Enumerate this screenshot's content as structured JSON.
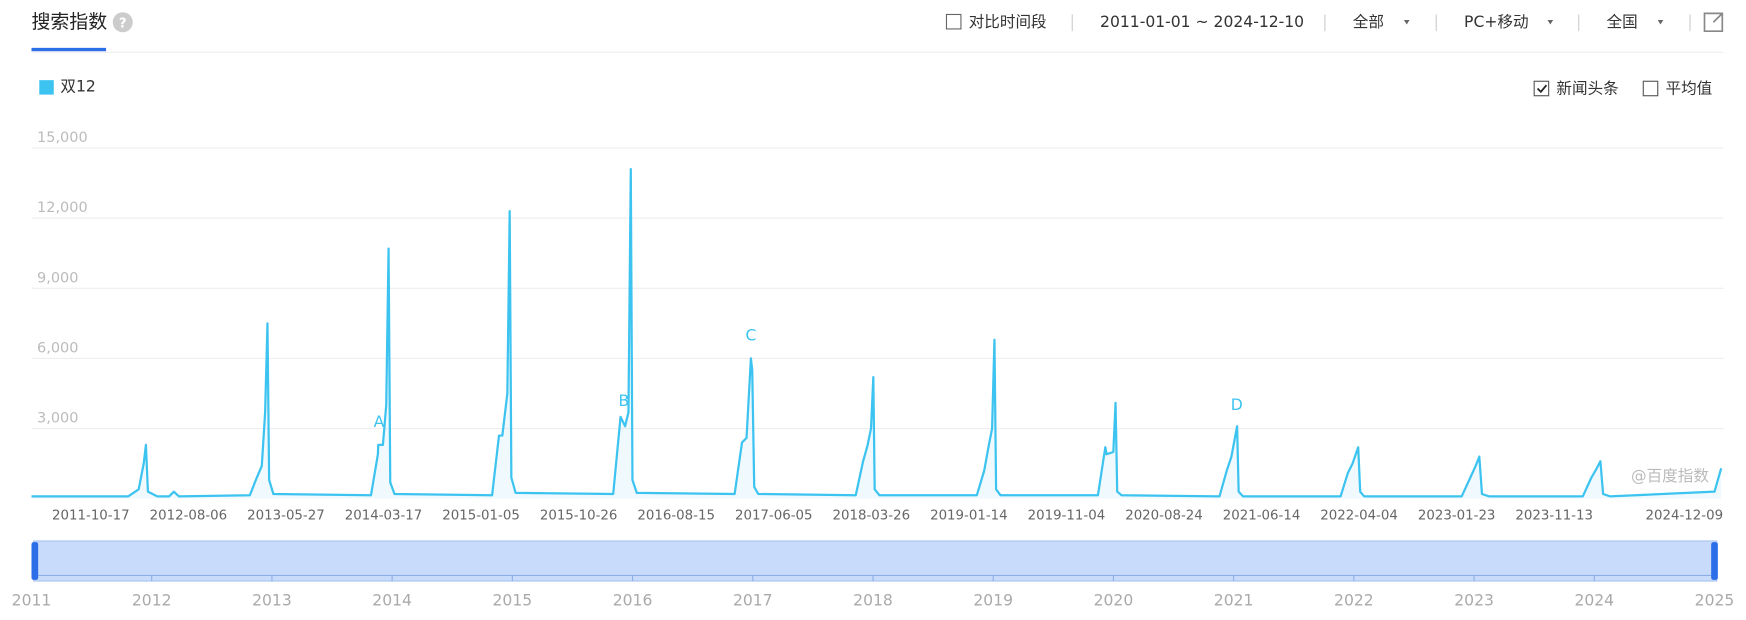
{
  "header": {
    "title": "搜索指数",
    "help": "?",
    "compare": "对比时间段",
    "date_range": "2011-01-01 ~ 2024-12-10",
    "filters": [
      "全部",
      "PC+移动",
      "全国"
    ]
  },
  "options": [
    {
      "label": "新闻头条",
      "checked": true
    },
    {
      "label": "平均值",
      "checked": false
    }
  ],
  "watermark": "@百度指数",
  "chart_data": {
    "type": "line",
    "xlim": [
      "2011-01-01",
      "2024-12-10"
    ],
    "ylim": [
      0,
      15000
    ],
    "yticks": [
      {
        "value": 3000,
        "label": "3,000"
      },
      {
        "value": 6000,
        "label": "6,000"
      },
      {
        "value": 9000,
        "label": "9,000"
      },
      {
        "value": 12000,
        "label": "12,000"
      },
      {
        "value": 15000,
        "label": "15,000"
      }
    ],
    "xticks": [
      "2011-10-17",
      "2012-08-06",
      "2013-05-27",
      "2014-03-17",
      "2015-01-05",
      "2015-10-26",
      "2016-08-15",
      "2017-06-05",
      "2018-03-26",
      "2019-01-14",
      "2019-11-04",
      "2020-08-24",
      "2021-06-14",
      "2022-04-04",
      "2023-01-23",
      "2023-11-13",
      "2024-12-09"
    ],
    "grid": true,
    "legend": "top-left",
    "x": [
      "2011-01-01",
      "2011-10-20",
      "2011-11-20",
      "2011-12-05",
      "2011-12-12",
      "2011-12-18",
      "2012-01-15",
      "2012-02-20",
      "2012-03-05",
      "2012-03-20",
      "2012-10-20",
      "2012-11-10",
      "2012-11-25",
      "2012-12-05",
      "2012-12-12",
      "2012-12-17",
      "2012-12-30",
      "2013-10-20",
      "2013-11-10",
      "2013-11-11",
      "2013-11-25",
      "2013-12-05",
      "2013-12-12",
      "2013-12-17",
      "2013-12-30",
      "2014-10-20",
      "2014-11-10",
      "2014-11-20",
      "2014-12-05",
      "2014-12-12",
      "2014-12-17",
      "2014-12-30",
      "2015-10-20",
      "2015-11-11",
      "2015-11-25",
      "2015-12-05",
      "2015-12-12",
      "2015-12-17",
      "2015-12-30",
      "2016-10-20",
      "2016-11-11",
      "2016-11-25",
      "2016-12-08",
      "2016-12-12",
      "2016-12-18",
      "2016-12-30",
      "2017-10-20",
      "2017-11-11",
      "2017-11-25",
      "2017-12-05",
      "2017-12-12",
      "2017-12-16",
      "2017-12-30",
      "2018-10-20",
      "2018-11-11",
      "2018-11-25",
      "2018-12-05",
      "2018-12-12",
      "2018-12-17",
      "2018-12-30",
      "2019-10-20",
      "2019-11-11",
      "2019-11-15",
      "2019-12-05",
      "2019-12-12",
      "2019-12-17",
      "2019-12-30",
      "2020-10-20",
      "2020-11-11",
      "2020-11-25",
      "2020-12-12",
      "2020-12-17",
      "2020-12-30",
      "2021-10-20",
      "2021-11-11",
      "2021-11-25",
      "2021-12-12",
      "2021-12-18",
      "2021-12-30",
      "2022-10-20",
      "2022-11-15",
      "2022-12-01",
      "2022-12-12",
      "2022-12-20",
      "2023-01-10",
      "2023-10-20",
      "2023-11-15",
      "2023-12-01",
      "2023-12-12",
      "2023-12-20",
      "2024-01-10",
      "2024-11-20",
      "2024-12-10"
    ],
    "series": [
      {
        "name": "双12",
        "color": "#3cc3f0",
        "values": [
          100,
          100,
          400,
          1500,
          2300,
          300,
          100,
          100,
          300,
          100,
          150,
          900,
          1400,
          3700,
          7500,
          800,
          200,
          150,
          1900,
          2300,
          2300,
          4000,
          10700,
          700,
          200,
          150,
          2700,
          2700,
          4500,
          12300,
          900,
          250,
          200,
          3500,
          3100,
          3700,
          14100,
          800,
          250,
          200,
          2400,
          2600,
          6000,
          5500,
          500,
          200,
          150,
          1600,
          2300,
          3000,
          5200,
          400,
          150,
          150,
          1200,
          2300,
          3000,
          6800,
          400,
          150,
          150,
          2200,
          1900,
          2000,
          4100,
          300,
          150,
          100,
          1200,
          1800,
          3100,
          300,
          100,
          100,
          1100,
          1500,
          2200,
          300,
          100,
          100,
          900,
          1400,
          1800,
          200,
          100,
          100,
          900,
          1300,
          1600,
          200,
          100,
          300,
          1300
        ]
      }
    ],
    "annotations": [
      {
        "label": "A",
        "x": "2013-11-13"
      },
      {
        "label": "B",
        "x": "2015-11-21"
      },
      {
        "label": "C",
        "x": "2016-12-08"
      },
      {
        "label": "D",
        "x": "2020-12-11"
      }
    ]
  },
  "navigator": {
    "labels": [
      2011,
      2012,
      2013,
      2014,
      2015,
      2016,
      2017,
      2018,
      2019,
      2020,
      2021,
      2022,
      2023,
      2024,
      2025
    ]
  }
}
